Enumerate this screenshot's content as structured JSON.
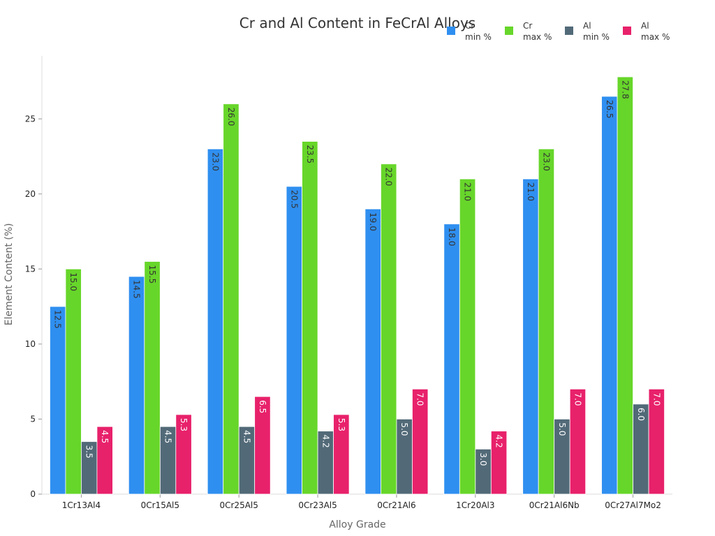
{
  "chart_data": {
    "type": "bar",
    "title": "Cr and Al Content in FeCrAl Alloys",
    "xlabel": "Alloy Grade",
    "ylabel": "Element Content (%)",
    "categories": [
      "1Cr13Al4",
      "0Cr15Al5",
      "0Cr25Al5",
      "0Cr23Al5",
      "0Cr21Al6",
      "1Cr20Al3",
      "0Cr21Al6Nb",
      "0Cr27Al7Mo2"
    ],
    "ylim": [
      0,
      29.2
    ],
    "yticks": [
      0,
      5,
      10,
      15,
      20,
      25
    ],
    "grid": false,
    "legend_position": "top-right",
    "series": [
      {
        "name_line1": "Cr",
        "name_line2": "min %",
        "color": "#2f8ff0",
        "label_color": "#333333",
        "values": [
          12.5,
          14.5,
          23.0,
          20.5,
          19.0,
          18.0,
          21.0,
          26.5
        ]
      },
      {
        "name_line1": "Cr",
        "name_line2": "max %",
        "color": "#67d62a",
        "label_color": "#333333",
        "values": [
          15.0,
          15.5,
          26.0,
          23.5,
          22.0,
          21.0,
          23.0,
          27.8
        ]
      },
      {
        "name_line1": "Al",
        "name_line2": "min %",
        "color": "#526a78",
        "label_color": "#ffffff",
        "values": [
          3.5,
          4.5,
          4.5,
          4.2,
          5.0,
          3.0,
          5.0,
          6.0
        ]
      },
      {
        "name_line1": "Al",
        "name_line2": "max %",
        "color": "#e8216b",
        "label_color": "#ffffff",
        "values": [
          4.5,
          5.3,
          6.5,
          5.3,
          7.0,
          4.2,
          7.0,
          7.0
        ]
      }
    ]
  }
}
